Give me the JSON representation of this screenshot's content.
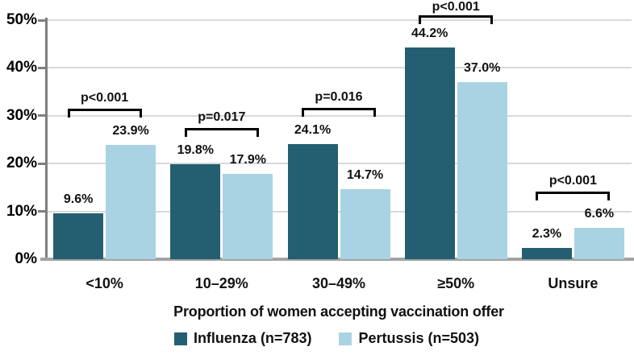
{
  "chart_data": {
    "type": "bar",
    "title": "",
    "xlabel": "Proportion of women accepting vaccination offer",
    "ylabel": "",
    "ylim": [
      0,
      50
    ],
    "yticks": [
      0,
      10,
      20,
      30,
      40,
      50
    ],
    "ytick_labels": [
      "0%",
      "10%",
      "20%",
      "30%",
      "40%",
      "50%"
    ],
    "grid": true,
    "legend_position": "bottom",
    "categories": [
      "<10%",
      "10–29%",
      "30–49%",
      "≥50%",
      "Unsure"
    ],
    "series": [
      {
        "name": "Influenza (n=783)",
        "color": "#235F70",
        "values": [
          9.6,
          19.8,
          24.1,
          44.2,
          2.3
        ],
        "labels": [
          "9.6%",
          "19.8%",
          "24.1%",
          "44.2%",
          "2.3%"
        ]
      },
      {
        "name": "Pertussis (n=503)",
        "color": "#A9D3E2",
        "values": [
          23.9,
          17.9,
          14.7,
          37.0,
          6.6
        ],
        "labels": [
          "23.9%",
          "17.9%",
          "14.7%",
          "37.0%",
          "6.6%"
        ]
      }
    ],
    "annotations": {
      "p_values": [
        "p<0.001",
        "p=0.017",
        "p=0.016",
        "p<0.001",
        "p<0.001"
      ]
    }
  },
  "colors": {
    "influenza": "#235F70",
    "pertussis": "#A9D3E2",
    "gridline": "#D9D9D9",
    "axis": "#7F7F7F",
    "baseline": "#A3A3A3",
    "text": "#111111"
  }
}
